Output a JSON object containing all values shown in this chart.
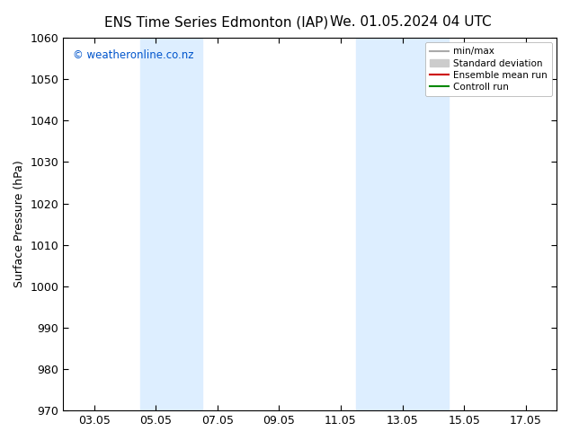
{
  "title1": "ENS Time Series Edmonton (IAP)",
  "title2": "We. 01.05.2024 04 UTC",
  "ylabel": "Surface Pressure (hPa)",
  "ylim": [
    970,
    1060
  ],
  "yticks": [
    970,
    980,
    990,
    1000,
    1010,
    1020,
    1030,
    1040,
    1050,
    1060
  ],
  "xtick_labels": [
    "03.05",
    "05.05",
    "07.05",
    "09.05",
    "11.05",
    "13.05",
    "15.05",
    "17.05"
  ],
  "xtick_positions": [
    2,
    4,
    6,
    8,
    10,
    12,
    14,
    16
  ],
  "xlim": [
    1,
    17
  ],
  "shaded_bands": [
    {
      "x_start": 3.5,
      "x_end": 4.5,
      "color": "#ddeeff"
    },
    {
      "x_start": 4.5,
      "x_end": 5.5,
      "color": "#ddeeff"
    },
    {
      "x_start": 10.5,
      "x_end": 11.5,
      "color": "#ddeeff"
    },
    {
      "x_start": 11.5,
      "x_end": 13.5,
      "color": "#ddeeff"
    }
  ],
  "watermark": "© weatheronline.co.nz",
  "watermark_color": "#0055cc",
  "legend_entries": [
    {
      "label": "min/max",
      "color": "#aaaaaa",
      "lw": 1.5,
      "type": "line"
    },
    {
      "label": "Standard deviation",
      "color": "#cccccc",
      "lw": 8,
      "type": "patch"
    },
    {
      "label": "Ensemble mean run",
      "color": "#cc0000",
      "lw": 1.5,
      "type": "line"
    },
    {
      "label": "Controll run",
      "color": "#008800",
      "lw": 1.5,
      "type": "line"
    }
  ],
  "bg_color": "#ffffff",
  "plot_bg_color": "#ffffff"
}
